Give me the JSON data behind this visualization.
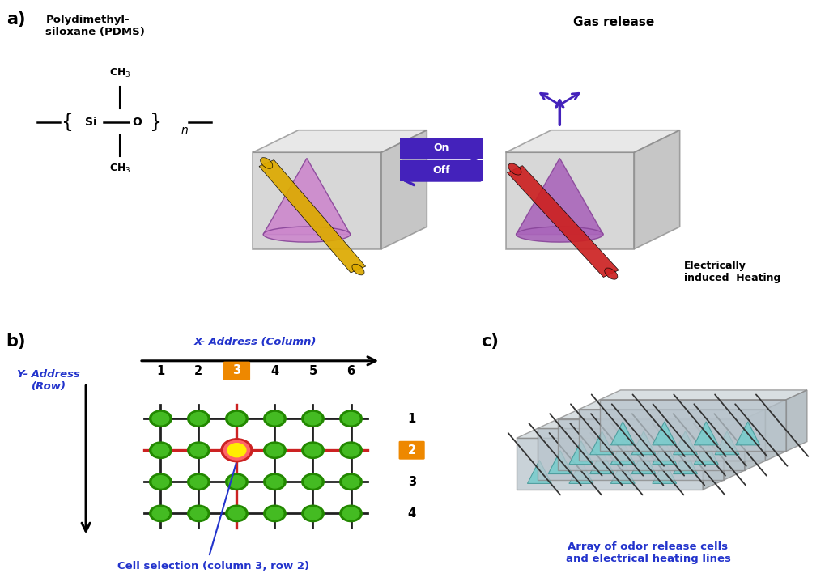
{
  "bg_color": "#ffffff",
  "panel_a_label": "a)",
  "panel_b_label": "b)",
  "panel_c_label": "c)",
  "pdms_title": "Polydimethyl-\nsiloxane (PDMS)",
  "gas_release_text": "Gas release",
  "on_text": "On",
  "off_text": "Off",
  "elec_heat_text": "Electrically\ninduced  Heating",
  "x_addr_text": "X- Address (Column)",
  "y_addr_text": "Y- Address\n(Row)",
  "cell_select_text": "Cell selection (column 3, row 2)",
  "col_labels": [
    "1",
    "2",
    "3",
    "4",
    "5",
    "6"
  ],
  "row_labels": [
    "1",
    "2",
    "3",
    "4"
  ],
  "selected_col_idx": 2,
  "selected_row_idx": 1,
  "array_text": "Array of odor release cells\nand electrical heating lines",
  "cone_color_off": "#cc88cc",
  "cone_color_on": "#aa66bb",
  "box_face": "#c8c8c8",
  "box_top": "#e0e0e0",
  "box_right": "#b0b0b0",
  "box_edge": "#888888",
  "rod_color_off": "#ddaa00",
  "rod_color_on": "#cc2222",
  "gas_arrow_color": "#4422bb",
  "on_off_box_color": "#4422bb",
  "green_node_color": "#44bb22",
  "green_node_dark": "#228800",
  "black_wire_color": "#222222",
  "red_wire_color": "#cc2222",
  "orange_label_color": "#ee8800",
  "selected_node_inner": "#ffee00",
  "selected_node_outer": "#cc2222",
  "cell_array_color": "#77cccc",
  "label_color": "#2233cc",
  "panel_c_box_face": "#b8c4cc",
  "panel_c_box_top": "#ccd4d8",
  "panel_c_box_right": "#a0acb4"
}
